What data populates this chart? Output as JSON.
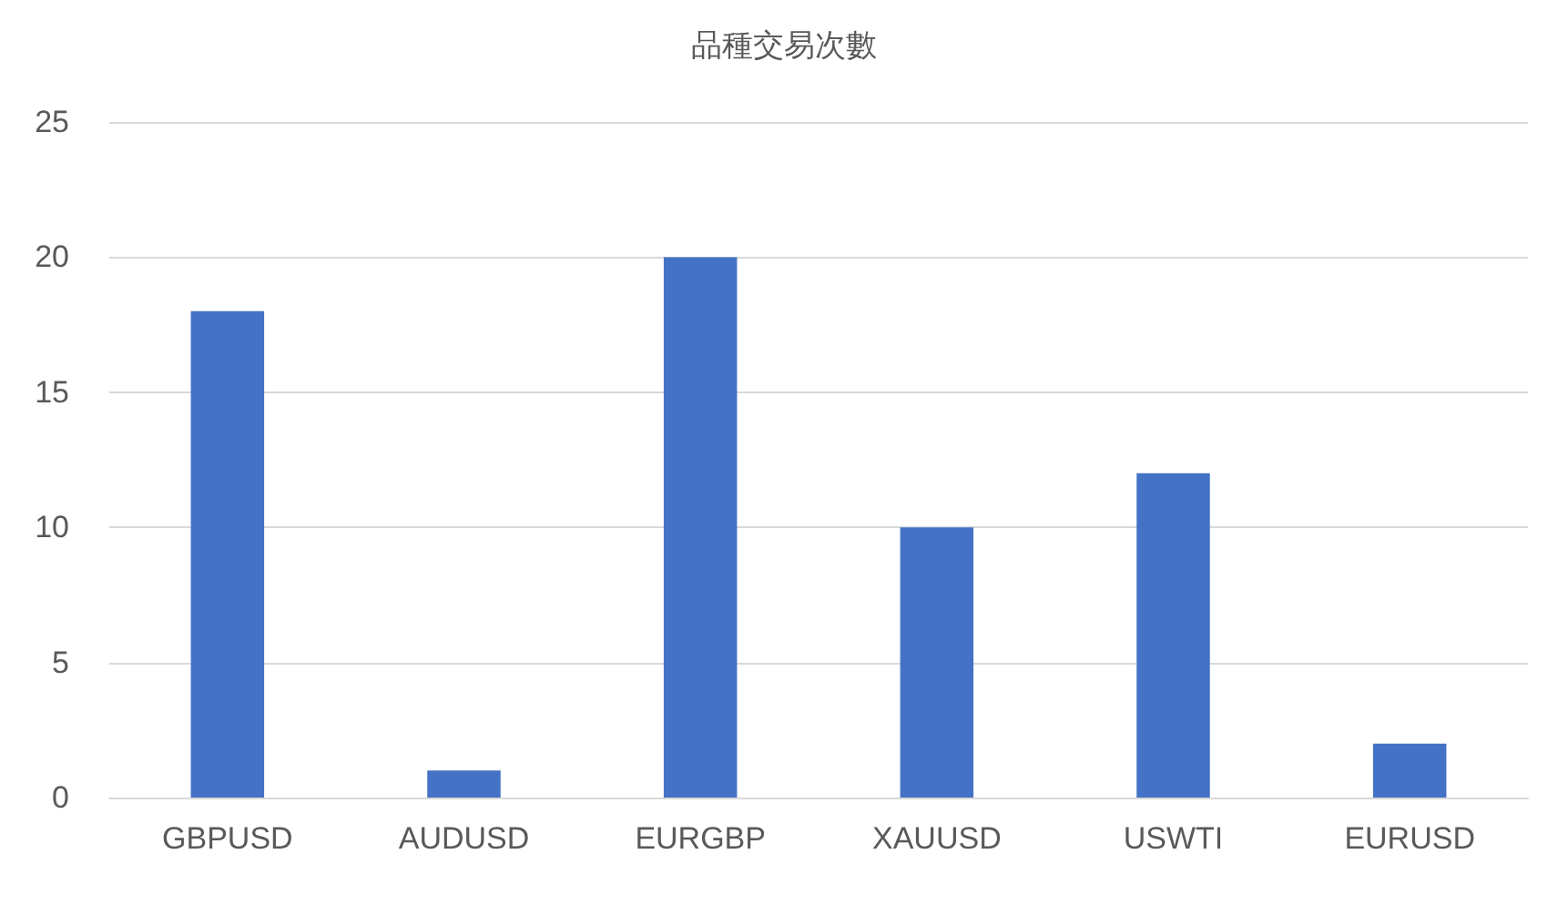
{
  "chart_data": {
    "type": "bar",
    "title": "品種交易次數",
    "categories": [
      "GBPUSD",
      "AUDUSD",
      "EURGBP",
      "XAUUSD",
      "USWTI",
      "EURUSD"
    ],
    "values": [
      18,
      1,
      20,
      10,
      12,
      2
    ],
    "color": "#4472c4",
    "ylim": [
      0,
      25
    ],
    "yticks": [
      0,
      5,
      10,
      15,
      20,
      25
    ],
    "grid": "y"
  }
}
